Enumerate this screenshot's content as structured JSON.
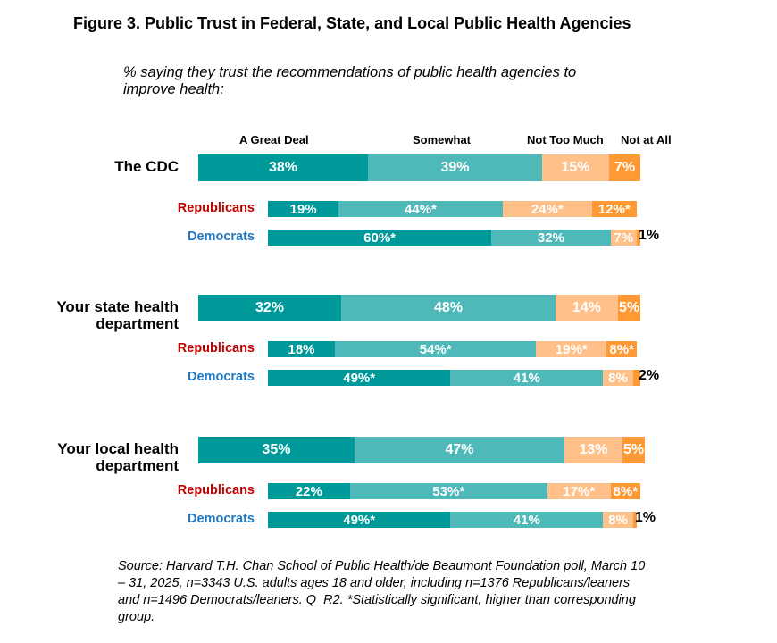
{
  "chart_data": {
    "type": "bar",
    "orientation": "horizontal-stacked",
    "title": "Figure 3. Public Trust in Federal, State, and Local Public Health Agencies",
    "subtitle": "% saying they trust the recommendations of public health agencies to improve health:",
    "legend": [
      "A Great Deal",
      "Somewhat",
      "Not Too Much",
      "Not at All"
    ],
    "colors": [
      "#009999",
      "#4fb8b8",
      "#ffc08a",
      "#ff9933"
    ],
    "groups": [
      {
        "name": "The CDC",
        "rows": [
          {
            "name": "The CDC",
            "values": [
              38,
              39,
              15,
              7
            ],
            "labels": [
              "38%",
              "39%",
              "15%",
              "7%"
            ]
          },
          {
            "name": "Republicans",
            "values": [
              19,
              44,
              24,
              12
            ],
            "labels": [
              "19%",
              "44%*",
              "24%*",
              "12%*"
            ]
          },
          {
            "name": "Democrats",
            "values": [
              60,
              32,
              7,
              1
            ],
            "labels": [
              "60%*",
              "32%",
              "7%",
              "1%"
            ]
          }
        ]
      },
      {
        "name": "Your state health department",
        "rows": [
          {
            "name": "Your state health department",
            "values": [
              32,
              48,
              14,
              5
            ],
            "labels": [
              "32%",
              "48%",
              "14%",
              "5%"
            ]
          },
          {
            "name": "Republicans",
            "values": [
              18,
              54,
              19,
              8
            ],
            "labels": [
              "18%",
              "54%*",
              "19%*",
              "8%*"
            ]
          },
          {
            "name": "Democrats",
            "values": [
              49,
              41,
              8,
              2
            ],
            "labels": [
              "49%*",
              "41%",
              "8%",
              "2%"
            ]
          }
        ]
      },
      {
        "name": "Your local health department",
        "rows": [
          {
            "name": "Your local health department",
            "values": [
              35,
              47,
              13,
              5
            ],
            "labels": [
              "35%",
              "47%",
              "13%",
              "5%"
            ]
          },
          {
            "name": "Republicans",
            "values": [
              22,
              53,
              17,
              8
            ],
            "labels": [
              "22%",
              "53%*",
              "17%*",
              "8%*"
            ]
          },
          {
            "name": "Democrats",
            "values": [
              49,
              41,
              8,
              1
            ],
            "labels": [
              "49%*",
              "41%",
              "8%",
              "1%"
            ]
          }
        ]
      }
    ],
    "source": "Source: Harvard T.H. Chan School of Public Health/de Beaumont Foundation poll, March 10 – 31, 2025, n=3343 U.S. adults ages 18 and older, including n=1376 Republicans/leaners and n=1496 Democrats/leaners. Q_R2. *Statistically significant, higher than corresponding group."
  }
}
